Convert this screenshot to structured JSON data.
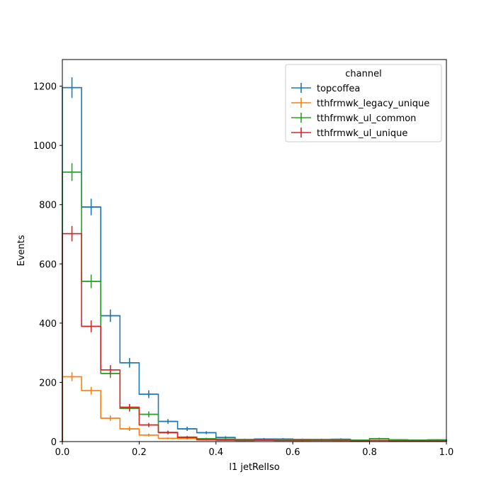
{
  "chart_data": {
    "type": "histogram",
    "xlabel": "l1 jetRelIso",
    "ylabel": "Events",
    "xlim": [
      0,
      1.0
    ],
    "ylim": [
      0,
      1290
    ],
    "x_ticks": [
      0.0,
      0.2,
      0.4,
      0.6,
      0.8,
      1.0
    ],
    "x_tick_labels": [
      "0.0",
      "0.2",
      "0.4",
      "0.6",
      "0.8",
      "1.0"
    ],
    "y_ticks": [
      0,
      200,
      400,
      600,
      800,
      1000,
      1200
    ],
    "y_tick_labels": [
      "0",
      "200",
      "400",
      "600",
      "800",
      "1000",
      "1200"
    ],
    "bin_edges": [
      0.0,
      0.05,
      0.1,
      0.15,
      0.2,
      0.25,
      0.3,
      0.35,
      0.4,
      0.45,
      0.5,
      0.55,
      0.6,
      0.65,
      0.7,
      0.75,
      0.8,
      0.85,
      0.9,
      0.95,
      1.0
    ],
    "legend": {
      "title": "channel",
      "position": "top-right"
    },
    "grid": false,
    "series": [
      {
        "name": "topcoffea",
        "color": "#1f77b4",
        "values": [
          1195,
          792,
          425,
          266,
          160,
          68,
          43,
          30,
          14,
          7,
          9,
          9,
          7,
          7,
          8,
          5,
          10,
          6,
          5,
          6
        ],
        "errors": [
          35,
          28,
          21,
          16,
          13,
          8,
          7,
          5,
          4,
          3,
          3,
          3,
          3,
          3,
          3,
          2,
          3,
          2,
          2,
          2
        ]
      },
      {
        "name": "tthfrmwk_legacy_unique",
        "color": "#ff7f0e",
        "values": [
          219,
          172,
          79,
          43,
          22,
          11,
          10,
          7,
          6,
          5,
          5,
          5,
          4,
          5,
          4,
          3,
          4,
          3,
          3,
          3
        ],
        "errors": [
          15,
          13,
          9,
          7,
          5,
          3,
          3,
          3,
          2,
          2,
          2,
          2,
          2,
          2,
          2,
          2,
          2,
          2,
          2,
          2
        ]
      },
      {
        "name": "tthfrmwk_ul_common",
        "color": "#2ca02c",
        "values": [
          910,
          541,
          230,
          112,
          92,
          30,
          15,
          10,
          9,
          6,
          6,
          7,
          7,
          6,
          6,
          5,
          10,
          6,
          5,
          5
        ],
        "errors": [
          30,
          23,
          15,
          11,
          10,
          5,
          4,
          3,
          3,
          2,
          2,
          3,
          3,
          2,
          2,
          2,
          3,
          2,
          2,
          2
        ]
      },
      {
        "name": "tthfrmwk_ul_unique",
        "color": "#d62728",
        "values": [
          702,
          389,
          242,
          116,
          56,
          31,
          14,
          6,
          5,
          4,
          5,
          4,
          4,
          4,
          4,
          3,
          4,
          3,
          3,
          3
        ],
        "errors": [
          26,
          20,
          16,
          11,
          7,
          6,
          4,
          2,
          2,
          2,
          2,
          2,
          2,
          2,
          2,
          2,
          2,
          2,
          2,
          2
        ]
      }
    ]
  }
}
